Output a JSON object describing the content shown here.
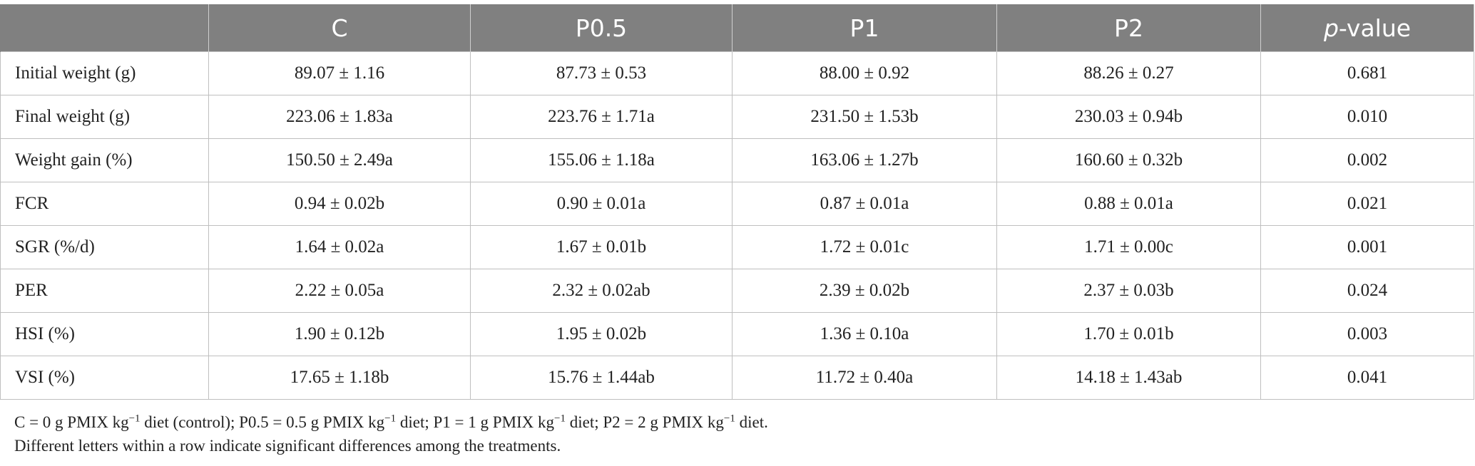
{
  "table": {
    "columns": [
      "",
      "C",
      "P0.5",
      "P1",
      "P2",
      "p-value"
    ],
    "rows": [
      {
        "label": "Initial weight (g)",
        "c": "89.07 ± 1.16",
        "p05": "87.73 ± 0.53",
        "p1": "88.00 ± 0.92",
        "p2": "88.26 ± 0.27",
        "pvalue": "0.681"
      },
      {
        "label": "Final weight (g)",
        "c": "223.06 ± 1.83a",
        "p05": "223.76 ± 1.71a",
        "p1": "231.50 ± 1.53b",
        "p2": "230.03 ± 0.94b",
        "pvalue": "0.010"
      },
      {
        "label": "Weight gain (%)",
        "c": "150.50 ± 2.49a",
        "p05": "155.06 ± 1.18a",
        "p1": "163.06 ± 1.27b",
        "p2": "160.60 ± 0.32b",
        "pvalue": "0.002"
      },
      {
        "label": "FCR",
        "c": "0.94 ± 0.02b",
        "p05": "0.90 ± 0.01a",
        "p1": "0.87 ± 0.01a",
        "p2": "0.88 ± 0.01a",
        "pvalue": "0.021"
      },
      {
        "label": "SGR (%/d)",
        "c": "1.64 ± 0.02a",
        "p05": "1.67 ± 0.01b",
        "p1": "1.72 ± 0.01c",
        "p2": "1.71 ± 0.00c",
        "pvalue": "0.001"
      },
      {
        "label": "PER",
        "c": "2.22 ± 0.05a",
        "p05": "2.32 ± 0.02ab",
        "p1": "2.39 ± 0.02b",
        "p2": "2.37 ± 0.03b",
        "pvalue": "0.024"
      },
      {
        "label": "HSI (%)",
        "c": "1.90 ± 0.12b",
        "p05": "1.95 ± 0.02b",
        "p1": "1.36 ± 0.10a",
        "p2": "1.70 ± 0.01b",
        "pvalue": "0.003"
      },
      {
        "label": "VSI (%)",
        "c": "17.65 ± 1.18b",
        "p05": "15.76 ± 1.44ab",
        "p1": "11.72 ± 0.40a",
        "p2": "14.18 ± 1.43ab",
        "pvalue": "0.041"
      }
    ]
  },
  "footnotes": {
    "line1": {
      "seg_c": "C = 0 g PMIX kg",
      "seg_c_end": " diet (control); P0.5 = 0.5 g PMIX kg",
      "seg_p05_end": " diet; P1 = 1 g PMIX kg",
      "seg_p1_end": " diet; P2 = 2 g PMIX kg",
      "seg_p2_end": " diet.",
      "exponent": "−1"
    },
    "line2": "Different letters within a row indicate significant differences among the treatments."
  }
}
